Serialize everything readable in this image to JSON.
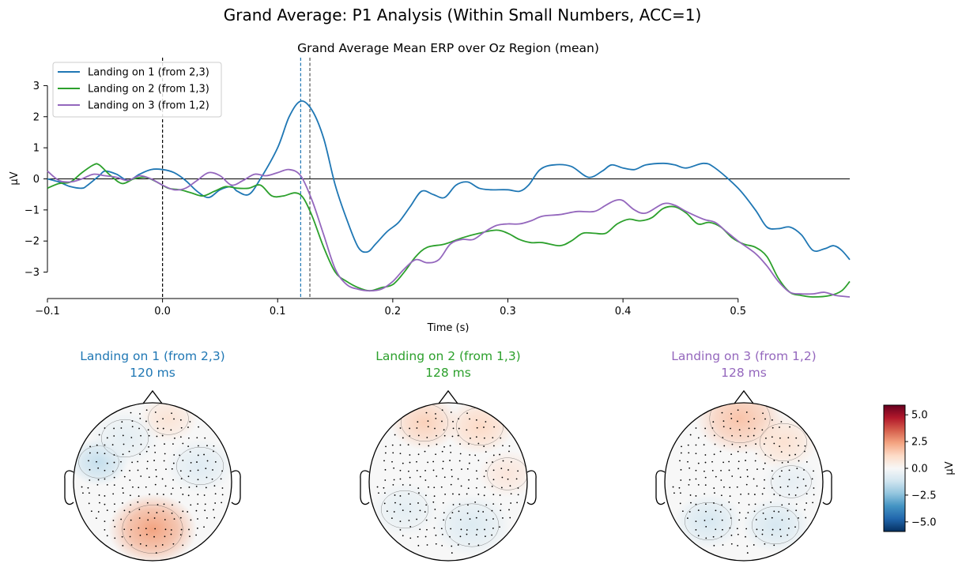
{
  "figure": {
    "suptitle": "Grand Average: P1 Analysis (Within Small Numbers, ACC=1)"
  },
  "chart_data": [
    {
      "type": "line",
      "title": "Grand Average Mean ERP over Oz Region (mean)",
      "xlabel": "Time (s)",
      "ylabel": "µV",
      "xlim": [
        -0.1,
        0.597
      ],
      "ylim": [
        -3.85,
        3.9
      ],
      "x_ticks": [
        -0.1,
        0.0,
        0.1,
        0.2,
        0.3,
        0.4,
        0.5
      ],
      "x_tick_labels": [
        "−0.1",
        "0.0",
        "0.1",
        "0.2",
        "0.3",
        "0.4",
        "0.5"
      ],
      "y_ticks": [
        -3,
        -2,
        -1,
        0,
        1,
        2,
        3
      ],
      "y_tick_labels": [
        "−3",
        "−2",
        "−1",
        "0",
        "1",
        "2",
        "3"
      ],
      "legend": {
        "loc": "top-left"
      },
      "baseline_y": 0,
      "stimulus_onset": 0.0,
      "peak_markers": [
        {
          "x": 0.12,
          "color": "#1f77b4"
        },
        {
          "x": 0.128,
          "color": "#555555"
        }
      ],
      "series": [
        {
          "name": "Landing on 1 (from 2,3)",
          "color": "#1f77b4",
          "points": [
            [
              -0.1,
              0.0
            ],
            [
              -0.09,
              -0.1
            ],
            [
              -0.08,
              -0.25
            ],
            [
              -0.07,
              -0.3
            ],
            [
              -0.065,
              -0.2
            ],
            [
              -0.055,
              0.1
            ],
            [
              -0.05,
              0.25
            ],
            [
              -0.04,
              0.15
            ],
            [
              -0.03,
              -0.05
            ],
            [
              -0.02,
              0.15
            ],
            [
              -0.01,
              0.3
            ],
            [
              0.0,
              0.3
            ],
            [
              0.01,
              0.2
            ],
            [
              0.02,
              -0.05
            ],
            [
              0.03,
              -0.4
            ],
            [
              0.04,
              -0.6
            ],
            [
              0.05,
              -0.35
            ],
            [
              0.06,
              -0.25
            ],
            [
              0.065,
              -0.4
            ],
            [
              0.075,
              -0.5
            ],
            [
              0.085,
              0.0
            ],
            [
              0.1,
              1.0
            ],
            [
              0.11,
              2.0
            ],
            [
              0.12,
              2.5
            ],
            [
              0.13,
              2.2
            ],
            [
              0.14,
              1.3
            ],
            [
              0.15,
              -0.2
            ],
            [
              0.16,
              -1.3
            ],
            [
              0.17,
              -2.2
            ],
            [
              0.178,
              -2.35
            ],
            [
              0.185,
              -2.1
            ],
            [
              0.195,
              -1.7
            ],
            [
              0.205,
              -1.4
            ],
            [
              0.215,
              -0.9
            ],
            [
              0.225,
              -0.4
            ],
            [
              0.235,
              -0.5
            ],
            [
              0.245,
              -0.6
            ],
            [
              0.255,
              -0.2
            ],
            [
              0.265,
              -0.1
            ],
            [
              0.275,
              -0.3
            ],
            [
              0.285,
              -0.35
            ],
            [
              0.3,
              -0.35
            ],
            [
              0.31,
              -0.4
            ],
            [
              0.318,
              -0.2
            ],
            [
              0.328,
              0.3
            ],
            [
              0.34,
              0.45
            ],
            [
              0.355,
              0.4
            ],
            [
              0.37,
              0.05
            ],
            [
              0.382,
              0.25
            ],
            [
              0.39,
              0.45
            ],
            [
              0.4,
              0.35
            ],
            [
              0.41,
              0.3
            ],
            [
              0.42,
              0.45
            ],
            [
              0.435,
              0.5
            ],
            [
              0.445,
              0.45
            ],
            [
              0.455,
              0.35
            ],
            [
              0.47,
              0.5
            ],
            [
              0.48,
              0.35
            ],
            [
              0.5,
              -0.3
            ],
            [
              0.515,
              -1.0
            ],
            [
              0.525,
              -1.55
            ],
            [
              0.535,
              -1.6
            ],
            [
              0.545,
              -1.55
            ],
            [
              0.555,
              -1.8
            ],
            [
              0.565,
              -2.3
            ],
            [
              0.575,
              -2.25
            ],
            [
              0.583,
              -2.15
            ],
            [
              0.59,
              -2.3
            ],
            [
              0.597,
              -2.6
            ]
          ]
        },
        {
          "name": "Landing on 2 (from 1,3)",
          "color": "#2ca02c",
          "points": [
            [
              -0.1,
              -0.3
            ],
            [
              -0.09,
              -0.15
            ],
            [
              -0.08,
              -0.1
            ],
            [
              -0.07,
              0.2
            ],
            [
              -0.06,
              0.45
            ],
            [
              -0.055,
              0.45
            ],
            [
              -0.045,
              0.1
            ],
            [
              -0.035,
              -0.15
            ],
            [
              -0.025,
              0.0
            ],
            [
              -0.015,
              0.05
            ],
            [
              -0.005,
              -0.1
            ],
            [
              0.005,
              -0.3
            ],
            [
              0.015,
              -0.35
            ],
            [
              0.025,
              -0.45
            ],
            [
              0.035,
              -0.55
            ],
            [
              0.045,
              -0.4
            ],
            [
              0.055,
              -0.25
            ],
            [
              0.065,
              -0.3
            ],
            [
              0.075,
              -0.3
            ],
            [
              0.085,
              -0.2
            ],
            [
              0.095,
              -0.55
            ],
            [
              0.105,
              -0.55
            ],
            [
              0.115,
              -0.45
            ],
            [
              0.122,
              -0.6
            ],
            [
              0.13,
              -1.2
            ],
            [
              0.14,
              -2.2
            ],
            [
              0.15,
              -3.0
            ],
            [
              0.16,
              -3.3
            ],
            [
              0.17,
              -3.5
            ],
            [
              0.18,
              -3.6
            ],
            [
              0.19,
              -3.5
            ],
            [
              0.2,
              -3.4
            ],
            [
              0.21,
              -3.0
            ],
            [
              0.22,
              -2.5
            ],
            [
              0.23,
              -2.2
            ],
            [
              0.245,
              -2.1
            ],
            [
              0.26,
              -1.9
            ],
            [
              0.275,
              -1.75
            ],
            [
              0.29,
              -1.65
            ],
            [
              0.3,
              -1.75
            ],
            [
              0.31,
              -1.95
            ],
            [
              0.32,
              -2.05
            ],
            [
              0.33,
              -2.05
            ],
            [
              0.345,
              -2.15
            ],
            [
              0.355,
              -2.0
            ],
            [
              0.365,
              -1.75
            ],
            [
              0.375,
              -1.75
            ],
            [
              0.385,
              -1.75
            ],
            [
              0.395,
              -1.45
            ],
            [
              0.405,
              -1.3
            ],
            [
              0.415,
              -1.35
            ],
            [
              0.425,
              -1.25
            ],
            [
              0.435,
              -0.95
            ],
            [
              0.445,
              -0.9
            ],
            [
              0.455,
              -1.1
            ],
            [
              0.465,
              -1.45
            ],
            [
              0.475,
              -1.4
            ],
            [
              0.485,
              -1.55
            ],
            [
              0.495,
              -1.9
            ],
            [
              0.505,
              -2.1
            ],
            [
              0.515,
              -2.2
            ],
            [
              0.525,
              -2.5
            ],
            [
              0.535,
              -3.2
            ],
            [
              0.545,
              -3.65
            ],
            [
              0.555,
              -3.75
            ],
            [
              0.565,
              -3.8
            ],
            [
              0.58,
              -3.75
            ],
            [
              0.59,
              -3.6
            ],
            [
              0.597,
              -3.3
            ]
          ]
        },
        {
          "name": "Landing on 3 (from 1,2)",
          "color": "#9467bd",
          "points": [
            [
              -0.1,
              0.25
            ],
            [
              -0.09,
              -0.05
            ],
            [
              -0.08,
              -0.1
            ],
            [
              -0.07,
              0.0
            ],
            [
              -0.06,
              0.15
            ],
            [
              -0.05,
              0.1
            ],
            [
              -0.04,
              0.05
            ],
            [
              -0.03,
              -0.05
            ],
            [
              -0.02,
              0.1
            ],
            [
              -0.01,
              0.0
            ],
            [
              0.0,
              -0.2
            ],
            [
              0.01,
              -0.35
            ],
            [
              0.02,
              -0.3
            ],
            [
              0.03,
              -0.05
            ],
            [
              0.04,
              0.2
            ],
            [
              0.05,
              0.1
            ],
            [
              0.06,
              -0.2
            ],
            [
              0.07,
              -0.05
            ],
            [
              0.08,
              0.15
            ],
            [
              0.09,
              0.1
            ],
            [
              0.1,
              0.2
            ],
            [
              0.11,
              0.3
            ],
            [
              0.12,
              0.1
            ],
            [
              0.13,
              -0.7
            ],
            [
              0.14,
              -1.8
            ],
            [
              0.15,
              -2.9
            ],
            [
              0.16,
              -3.4
            ],
            [
              0.17,
              -3.55
            ],
            [
              0.18,
              -3.6
            ],
            [
              0.19,
              -3.55
            ],
            [
              0.2,
              -3.3
            ],
            [
              0.21,
              -2.9
            ],
            [
              0.22,
              -2.6
            ],
            [
              0.23,
              -2.7
            ],
            [
              0.24,
              -2.6
            ],
            [
              0.25,
              -2.1
            ],
            [
              0.26,
              -1.95
            ],
            [
              0.27,
              -1.95
            ],
            [
              0.28,
              -1.7
            ],
            [
              0.29,
              -1.5
            ],
            [
              0.3,
              -1.45
            ],
            [
              0.31,
              -1.45
            ],
            [
              0.32,
              -1.35
            ],
            [
              0.33,
              -1.2
            ],
            [
              0.345,
              -1.15
            ],
            [
              0.36,
              -1.05
            ],
            [
              0.375,
              -1.05
            ],
            [
              0.385,
              -0.85
            ],
            [
              0.393,
              -0.7
            ],
            [
              0.4,
              -0.7
            ],
            [
              0.41,
              -1.0
            ],
            [
              0.42,
              -1.1
            ],
            [
              0.435,
              -0.8
            ],
            [
              0.445,
              -0.85
            ],
            [
              0.455,
              -1.05
            ],
            [
              0.47,
              -1.3
            ],
            [
              0.48,
              -1.4
            ],
            [
              0.49,
              -1.7
            ],
            [
              0.5,
              -2.0
            ],
            [
              0.515,
              -2.4
            ],
            [
              0.525,
              -2.8
            ],
            [
              0.535,
              -3.3
            ],
            [
              0.545,
              -3.65
            ],
            [
              0.555,
              -3.7
            ],
            [
              0.565,
              -3.7
            ],
            [
              0.575,
              -3.65
            ],
            [
              0.585,
              -3.75
            ],
            [
              0.597,
              -3.8
            ]
          ]
        }
      ]
    },
    {
      "type": "heatmap",
      "subtype": "topomap",
      "units": "µV",
      "colorbar": {
        "label": "µV",
        "vmin": -5.9,
        "vmax": 5.9,
        "ticks": [
          5.0,
          2.5,
          0.0,
          -2.5,
          -5.0
        ],
        "tick_labels": [
          "5.0",
          "2.5",
          "0.0",
          "−2.5",
          "−5.0"
        ],
        "colors": [
          "#67001f",
          "#b2182b",
          "#d6604d",
          "#f4a582",
          "#fddbc7",
          "#f7f7f7",
          "#d1e5f0",
          "#92c5de",
          "#4393c3",
          "#2166ac",
          "#053061"
        ]
      },
      "maps": [
        {
          "title": "Landing on 1 (from 2,3)",
          "time_label": "120 ms",
          "color": "#1f77b4",
          "blobs": [
            {
              "v": 2.4,
              "pos": [
                0.0,
                -0.6
              ],
              "r": 0.45
            },
            {
              "v": 0.8,
              "pos": [
                0.2,
                0.8
              ],
              "r": 0.3
            },
            {
              "v": -1.4,
              "pos": [
                -0.68,
                0.25
              ],
              "r": 0.3
            },
            {
              "v": -0.6,
              "pos": [
                -0.35,
                0.55
              ],
              "r": 0.35
            },
            {
              "v": -0.7,
              "pos": [
                0.6,
                0.2
              ],
              "r": 0.35
            }
          ]
        },
        {
          "title": "Landing on 2 (from 1,3)",
          "time_label": "128 ms",
          "color": "#2ca02c",
          "blobs": [
            {
              "v": 1.4,
              "pos": [
                -0.3,
                0.75
              ],
              "r": 0.35
            },
            {
              "v": 1.2,
              "pos": [
                0.4,
                0.7
              ],
              "r": 0.35
            },
            {
              "v": 0.7,
              "pos": [
                0.75,
                0.1
              ],
              "r": 0.3
            },
            {
              "v": -0.8,
              "pos": [
                0.3,
                -0.55
              ],
              "r": 0.4
            },
            {
              "v": -0.6,
              "pos": [
                -0.55,
                -0.35
              ],
              "r": 0.35
            }
          ]
        },
        {
          "title": "Landing on 3 (from 1,2)",
          "time_label": "128 ms",
          "color": "#9467bd",
          "blobs": [
            {
              "v": 1.7,
              "pos": [
                -0.05,
                0.8
              ],
              "r": 0.45
            },
            {
              "v": 0.9,
              "pos": [
                0.5,
                0.5
              ],
              "r": 0.35
            },
            {
              "v": -1.0,
              "pos": [
                -0.45,
                -0.5
              ],
              "r": 0.35
            },
            {
              "v": -1.0,
              "pos": [
                0.4,
                -0.55
              ],
              "r": 0.35
            },
            {
              "v": -0.5,
              "pos": [
                0.6,
                0.0
              ],
              "r": 0.3
            }
          ]
        }
      ]
    }
  ]
}
